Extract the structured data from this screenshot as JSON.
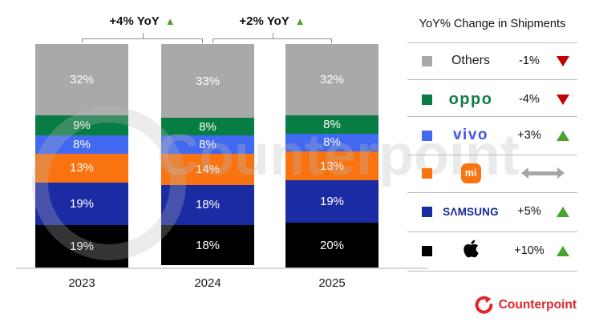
{
  "chart_data": {
    "type": "bar",
    "stacked": true,
    "categories": [
      "2023",
      "2024",
      "2025"
    ],
    "series": [
      {
        "name": "Apple",
        "color": "#000000",
        "values": [
          19,
          18,
          20
        ]
      },
      {
        "name": "Samsung",
        "color": "#1b2ba3",
        "values": [
          19,
          18,
          19
        ]
      },
      {
        "name": "Xiaomi",
        "color": "#f97310",
        "values": [
          13,
          14,
          13
        ]
      },
      {
        "name": "vivo",
        "color": "#4169f1",
        "values": [
          8,
          8,
          8
        ]
      },
      {
        "name": "OPPO",
        "color": "#087d43",
        "values": [
          9,
          8,
          8
        ]
      },
      {
        "name": "Others",
        "color": "#a9a9a9",
        "values": [
          32,
          33,
          32
        ]
      }
    ],
    "value_suffix": "%",
    "annotations": [
      {
        "label": "+4% YoY",
        "direction": "up",
        "from": 0,
        "to": 1
      },
      {
        "label": "+2% YoY",
        "direction": "up",
        "from": 1,
        "to": 2
      }
    ],
    "legend_position": "right",
    "grid": false,
    "xlabel": "",
    "ylabel": ""
  },
  "legend": {
    "title": "YoY% Change in Shipments",
    "rows": [
      {
        "id": "others",
        "label": "Others",
        "logo_style": "text",
        "logo_text": "Others",
        "swatch": "#a9a9a9",
        "change": "-1%",
        "trend": "down"
      },
      {
        "id": "oppo",
        "label": "OPPO",
        "logo_style": "oppo",
        "logo_text": "oppo",
        "swatch": "#087d43",
        "change": "-4%",
        "trend": "down"
      },
      {
        "id": "vivo",
        "label": "vivo",
        "logo_style": "vivo",
        "logo_text": "vivo",
        "swatch": "#4169f1",
        "change": "+3%",
        "trend": "up"
      },
      {
        "id": "xiaomi",
        "label": "Xiaomi",
        "logo_style": "mi",
        "logo_text": "mi",
        "swatch": "#f97310",
        "change": "",
        "trend": "flat"
      },
      {
        "id": "samsung",
        "label": "Samsung",
        "logo_style": "samsung",
        "logo_text": "SΛMSUNG",
        "swatch": "#1b2ba3",
        "change": "+5%",
        "trend": "up"
      },
      {
        "id": "apple",
        "label": "Apple",
        "logo_style": "apple",
        "logo_text": "",
        "swatch": "#000000",
        "change": "+10%",
        "trend": "up"
      }
    ]
  },
  "colors": {
    "trend_up": "#48a42e",
    "trend_down": "#c00000",
    "trend_flat": "#a6a6a6",
    "brand_red": "#e1252b",
    "axis_line": "#d6d6d6"
  },
  "footer": {
    "logo_text": "Counterpoint"
  },
  "watermark": {
    "text": "Counterpoint"
  }
}
